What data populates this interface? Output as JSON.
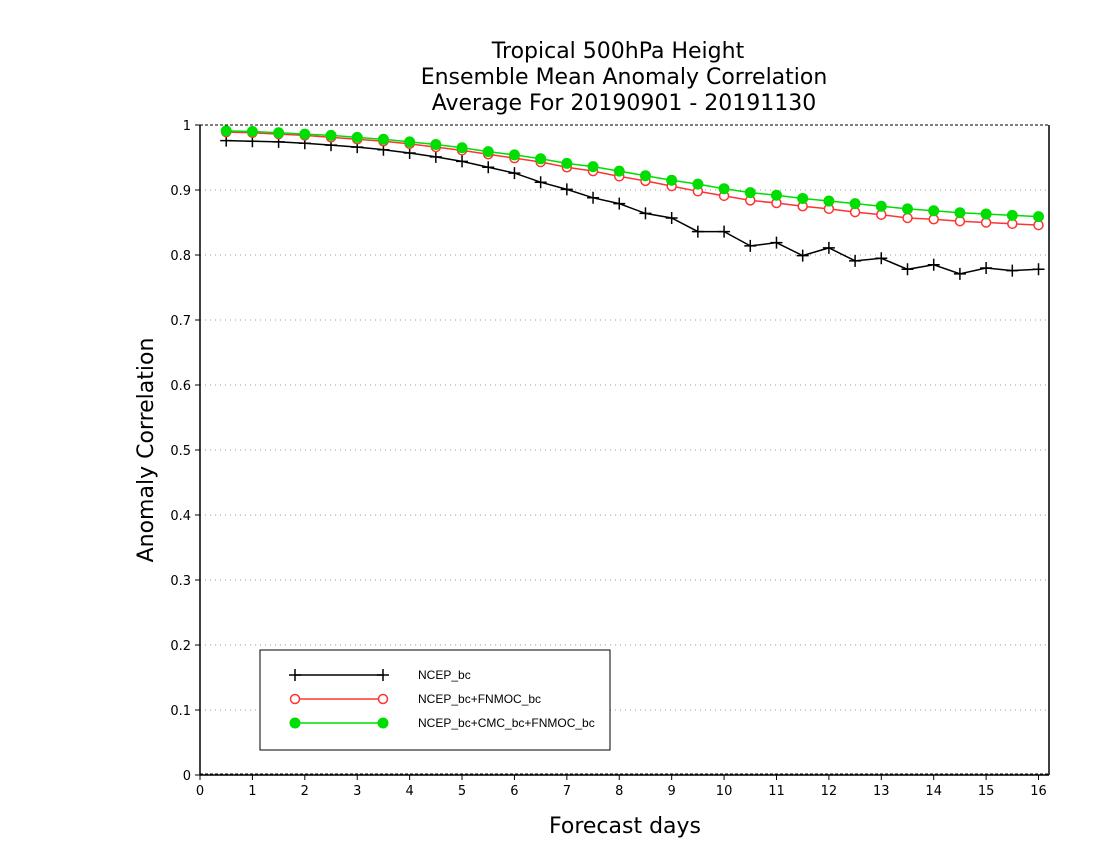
{
  "chart_data": {
    "type": "line",
    "title": [
      "Tropical 500hPa Height",
      "Ensemble Mean Anomaly Correlation",
      "Average For 20190901 - 20191130"
    ],
    "xlabel": "Forecast days",
    "ylabel": "Anomaly Correlation",
    "xlim": [
      0,
      16.2
    ],
    "ylim": [
      0,
      1
    ],
    "xticks": [
      0,
      1,
      2,
      3,
      4,
      5,
      6,
      7,
      8,
      9,
      10,
      11,
      12,
      13,
      14,
      15,
      16
    ],
    "yticks": [
      0,
      0.1,
      0.2,
      0.3,
      0.4,
      0.5,
      0.6,
      0.7,
      0.8,
      0.9,
      1
    ],
    "ytick_labels": [
      "0",
      "0.1",
      "0.2",
      "0.3",
      "0.4",
      "0.5",
      "0.6",
      "0.7",
      "0.8",
      "0.9",
      "1"
    ],
    "grid": "horizontal dotted",
    "legend_position": "bottom-left",
    "x": [
      0.5,
      1,
      1.5,
      2,
      2.5,
      3,
      3.5,
      4,
      4.5,
      5,
      5.5,
      6,
      6.5,
      7,
      7.5,
      8,
      8.5,
      9,
      9.5,
      10,
      10.5,
      11,
      11.5,
      12,
      12.5,
      13,
      13.5,
      14,
      14.5,
      15,
      15.5,
      16
    ],
    "series": [
      {
        "name": "NCEP_bc",
        "color": "#000000",
        "marker": "plus",
        "values": [
          0.976,
          0.975,
          0.974,
          0.972,
          0.969,
          0.966,
          0.962,
          0.957,
          0.951,
          0.944,
          0.935,
          0.926,
          0.912,
          0.901,
          0.888,
          0.879,
          0.864,
          0.857,
          0.836,
          0.836,
          0.814,
          0.819,
          0.799,
          0.811,
          0.791,
          0.795,
          0.778,
          0.785,
          0.771,
          0.78,
          0.776,
          0.778
        ]
      },
      {
        "name": "NCEP_bc+FNMOC_bc",
        "color": "#ff3333",
        "marker": "open-circle",
        "values": [
          0.989,
          0.988,
          0.986,
          0.984,
          0.981,
          0.978,
          0.975,
          0.971,
          0.966,
          0.961,
          0.955,
          0.949,
          0.943,
          0.935,
          0.929,
          0.921,
          0.914,
          0.906,
          0.898,
          0.891,
          0.884,
          0.88,
          0.875,
          0.871,
          0.866,
          0.862,
          0.857,
          0.855,
          0.852,
          0.85,
          0.848,
          0.846
        ]
      },
      {
        "name": "NCEP_bc+CMC_bc+FNMOC_bc",
        "color": "#00dd00",
        "marker": "filled-circle",
        "values": [
          0.991,
          0.99,
          0.988,
          0.986,
          0.984,
          0.981,
          0.978,
          0.974,
          0.97,
          0.965,
          0.959,
          0.954,
          0.948,
          0.941,
          0.936,
          0.929,
          0.922,
          0.915,
          0.909,
          0.902,
          0.896,
          0.892,
          0.887,
          0.883,
          0.879,
          0.875,
          0.871,
          0.868,
          0.865,
          0.863,
          0.861,
          0.859
        ]
      }
    ]
  }
}
